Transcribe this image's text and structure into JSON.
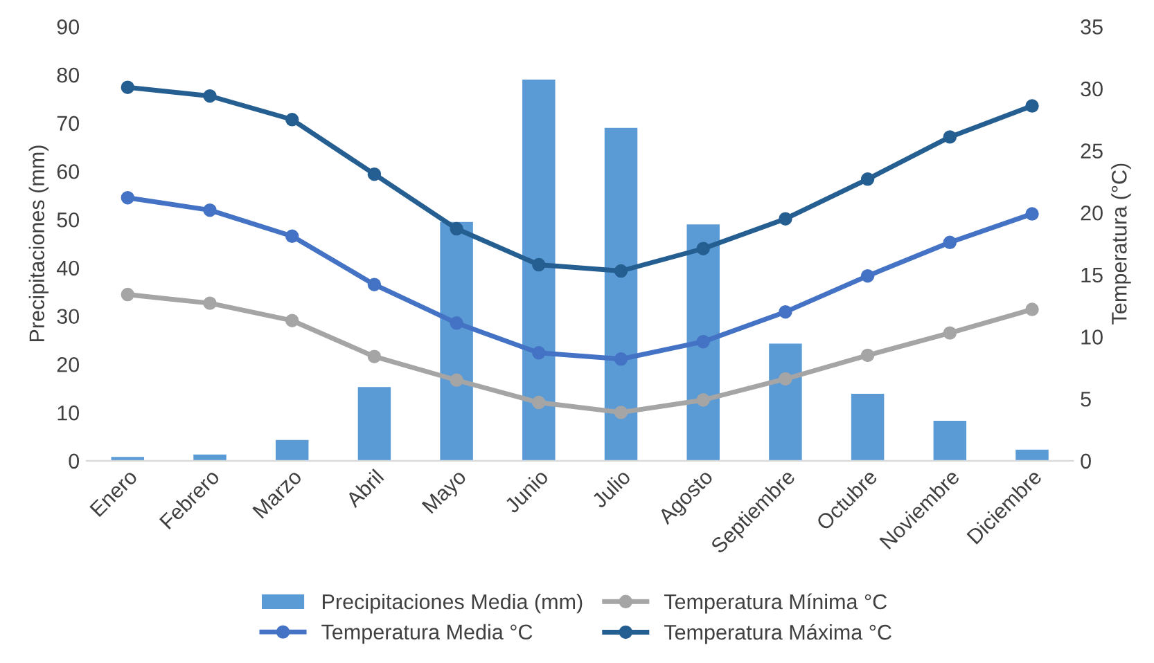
{
  "chart_data": {
    "type": "bar",
    "ylabel": "Precipitaciones (mm)",
    "y2label": "Temperatura (°C)",
    "categories": [
      "Enero",
      "Febrero",
      "Marzo",
      "Abril",
      "Mayo",
      "Junio",
      "Julio",
      "Agosto",
      "Septiembre",
      "Octubre",
      "Noviembre",
      "Diciembre"
    ],
    "series": [
      {
        "name": "Precipitaciones Media (mm)",
        "color": "#5b9bd5",
        "values": [
          0.8,
          1.3,
          4.3,
          15.3,
          49.5,
          79,
          69,
          49,
          24.3,
          13.9,
          8.3,
          2.3
        ]
      },
      {
        "name": "Temperatura Mínima °C",
        "type": "line",
        "axis": "y2",
        "color": "#a5a5a5",
        "values": [
          13.4,
          12.7,
          11.3,
          8.4,
          6.5,
          4.7,
          3.9,
          4.9,
          6.6,
          8.5,
          10.3,
          12.2
        ]
      },
      {
        "name": "Temperatura Media °C",
        "type": "line",
        "axis": "y2",
        "color": "#4472c4",
        "values": [
          21.2,
          20.2,
          18.1,
          14.2,
          11.1,
          8.7,
          8.2,
          9.6,
          12.0,
          14.9,
          17.6,
          19.9
        ]
      },
      {
        "name": "Temperatura Máxima °C",
        "type": "line",
        "axis": "y2",
        "color": "#255e91",
        "values": [
          30.1,
          29.4,
          27.5,
          23.1,
          18.7,
          15.8,
          15.3,
          17.1,
          19.5,
          22.7,
          26.1,
          28.6
        ]
      }
    ],
    "ylim": [
      0,
      90
    ],
    "yticks": [
      0,
      10,
      20,
      30,
      40,
      50,
      60,
      70,
      80,
      90
    ],
    "y2lim": [
      0,
      35
    ],
    "y2ticks": [
      0,
      5,
      10,
      15,
      20,
      25,
      30,
      35
    ],
    "marker": "circle",
    "legend": "bottom",
    "grid": false
  }
}
